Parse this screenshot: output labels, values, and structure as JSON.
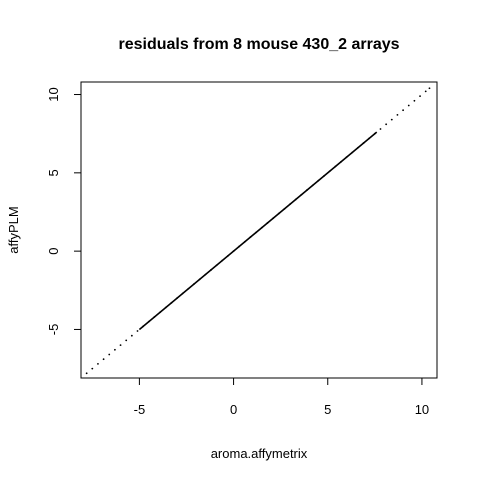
{
  "chart_data": {
    "type": "scatter",
    "title": "residuals from 8 mouse 430_2 arrays",
    "xlabel": "aroma.affymetrix",
    "ylabel": "affyPLM",
    "xlim": [
      -8.1,
      10.8
    ],
    "ylim": [
      -8.1,
      10.8
    ],
    "x_ticks": [
      -5,
      0,
      5,
      10
    ],
    "y_ticks": [
      -5,
      0,
      5,
      10
    ],
    "grid": false,
    "legend": "none",
    "colors": {
      "points": "#000000",
      "axes": "#000000",
      "background": "#ffffff"
    },
    "series": [
      {
        "points_description_range": [
          -7.8,
          10.4
        ],
        "x": [
          -7.8,
          -7.5,
          -7.2,
          -6.9,
          -6.6,
          -6.3,
          -6.0,
          -5.7,
          -5.4,
          -5.1,
          -4.8,
          -4.5,
          -4.2,
          -3.9,
          -3.6,
          -3.3,
          -3.0,
          -2.7,
          -2.4,
          -2.1,
          -1.8,
          -1.5,
          -1.2,
          -0.9,
          -0.6,
          -0.3,
          0.0,
          0.3,
          0.6,
          0.9,
          1.2,
          1.5,
          1.8,
          2.1,
          2.4,
          2.7,
          3.0,
          3.3,
          3.6,
          3.9,
          4.2,
          4.5,
          4.8,
          5.1,
          5.4,
          5.7,
          6.0,
          6.3,
          6.6,
          6.9,
          7.2,
          7.5,
          7.8,
          8.1,
          8.4,
          8.7,
          9.0,
          9.3,
          9.6,
          9.9,
          10.2,
          10.4
        ],
        "y": [
          -7.8,
          -7.5,
          -7.2,
          -6.9,
          -6.6,
          -6.3,
          -6.0,
          -5.7,
          -5.4,
          -5.1,
          -4.8,
          -4.5,
          -4.2,
          -3.9,
          -3.6,
          -3.3,
          -3.0,
          -2.7,
          -2.4,
          -2.1,
          -1.8,
          -1.5,
          -1.2,
          -0.9,
          -0.6,
          -0.3,
          0.0,
          0.3,
          0.6,
          0.9,
          1.2,
          1.5,
          1.8,
          2.1,
          2.4,
          2.7,
          3.0,
          3.3,
          3.6,
          3.9,
          4.2,
          4.5,
          4.8,
          5.1,
          5.4,
          5.7,
          6.0,
          6.3,
          6.6,
          6.9,
          7.2,
          7.5,
          7.8,
          8.1,
          8.4,
          8.7,
          9.0,
          9.3,
          9.6,
          9.9,
          10.2,
          10.4
        ]
      }
    ]
  }
}
